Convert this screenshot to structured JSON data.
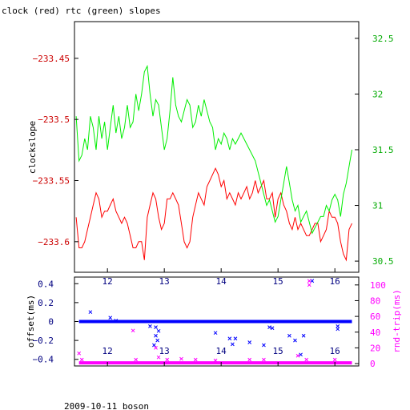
{
  "page": {
    "title": "clock (red) rtc (green) slopes",
    "footer": "2009-10-11 boson"
  },
  "colors": {
    "clock": "#ff0000",
    "rtc": "#00ee00",
    "offset": "#0000ff",
    "rtt": "#ff00ff",
    "axis": "#000000"
  },
  "chart_data": [
    {
      "type": "line",
      "title": "clock (red) rtc (green) slopes",
      "xlabel": "",
      "ylabel": "clockslope",
      "y2label": "",
      "xlim": [
        11.42,
        16.42
      ],
      "ylim": [
        -233.625,
        -233.42
      ],
      "y2lim": [
        30.4,
        32.65
      ],
      "xticks": [
        12,
        13,
        14,
        15,
        16
      ],
      "yticks": [
        -233.45,
        -233.5,
        -233.55,
        -233.6
      ],
      "y2ticks": [
        30.5,
        31,
        31.5,
        32,
        32.5
      ],
      "grid": false,
      "series": [
        {
          "name": "clock",
          "axis": "left",
          "x": [
            11.45,
            11.5,
            11.55,
            11.6,
            11.65,
            11.7,
            11.75,
            11.8,
            11.85,
            11.9,
            11.95,
            12.0,
            12.05,
            12.1,
            12.15,
            12.2,
            12.25,
            12.3,
            12.35,
            12.4,
            12.45,
            12.5,
            12.55,
            12.6,
            12.65,
            12.7,
            12.75,
            12.8,
            12.85,
            12.9,
            12.95,
            13.0,
            13.05,
            13.1,
            13.15,
            13.2,
            13.25,
            13.3,
            13.35,
            13.4,
            13.45,
            13.5,
            13.55,
            13.6,
            13.65,
            13.7,
            13.75,
            13.8,
            13.85,
            13.9,
            13.95,
            14.0,
            14.05,
            14.1,
            14.15,
            14.2,
            14.25,
            14.3,
            14.35,
            14.4,
            14.45,
            14.5,
            14.55,
            14.6,
            14.65,
            14.7,
            14.75,
            14.8,
            14.85,
            14.9,
            14.95,
            15.0,
            15.05,
            15.1,
            15.15,
            15.2,
            15.25,
            15.3,
            15.35,
            15.4,
            15.45,
            15.5,
            15.55,
            15.6,
            15.65,
            15.7,
            15.75,
            15.8,
            15.85,
            15.9,
            15.95,
            16.0,
            16.05,
            16.1,
            16.15,
            16.2,
            16.25,
            16.3
          ],
          "values": [
            -233.58,
            -233.605,
            -233.605,
            -233.6,
            -233.59,
            -233.58,
            -233.57,
            -233.56,
            -233.565,
            -233.58,
            -233.575,
            -233.575,
            -233.57,
            -233.565,
            -233.575,
            -233.58,
            -233.585,
            -233.58,
            -233.585,
            -233.595,
            -233.605,
            -233.605,
            -233.6,
            -233.6,
            -233.615,
            -233.58,
            -233.57,
            -233.56,
            -233.565,
            -233.58,
            -233.59,
            -233.585,
            -233.565,
            -233.565,
            -233.56,
            -233.565,
            -233.57,
            -233.585,
            -233.6,
            -233.605,
            -233.6,
            -233.58,
            -233.57,
            -233.56,
            -233.565,
            -233.57,
            -233.555,
            -233.55,
            -233.545,
            -233.54,
            -233.545,
            -233.555,
            -233.55,
            -233.565,
            -233.56,
            -233.565,
            -233.57,
            -233.56,
            -233.565,
            -233.56,
            -233.555,
            -233.565,
            -233.56,
            -233.55,
            -233.56,
            -233.555,
            -233.55,
            -233.565,
            -233.565,
            -233.56,
            -233.58,
            -233.565,
            -233.56,
            -233.57,
            -233.575,
            -233.585,
            -233.59,
            -233.58,
            -233.59,
            -233.585,
            -233.59,
            -233.595,
            -233.595,
            -233.59,
            -233.585,
            -233.585,
            -233.6,
            -233.595,
            -233.59,
            -233.575,
            -233.58,
            -233.58,
            -233.585,
            -233.6,
            -233.61,
            -233.615,
            -233.59,
            -233.585
          ]
        },
        {
          "name": "rtc",
          "axis": "right",
          "x": [
            11.45,
            11.5,
            11.55,
            11.6,
            11.65,
            11.7,
            11.75,
            11.8,
            11.85,
            11.9,
            11.95,
            12.0,
            12.05,
            12.1,
            12.15,
            12.2,
            12.25,
            12.3,
            12.35,
            12.4,
            12.45,
            12.5,
            12.55,
            12.6,
            12.65,
            12.7,
            12.75,
            12.8,
            12.85,
            12.9,
            12.95,
            13.0,
            13.05,
            13.1,
            13.15,
            13.2,
            13.25,
            13.3,
            13.35,
            13.4,
            13.45,
            13.5,
            13.55,
            13.6,
            13.65,
            13.7,
            13.75,
            13.8,
            13.85,
            13.9,
            13.95,
            14.0,
            14.05,
            14.1,
            14.15,
            14.2,
            14.25,
            14.3,
            14.35,
            14.4,
            14.45,
            14.5,
            14.55,
            14.6,
            14.65,
            14.7,
            14.75,
            14.8,
            14.85,
            14.9,
            14.95,
            15.0,
            15.05,
            15.1,
            15.15,
            15.2,
            15.25,
            15.3,
            15.35,
            15.4,
            15.45,
            15.5,
            15.55,
            15.6,
            15.65,
            15.7,
            15.75,
            15.8,
            15.85,
            15.9,
            15.95,
            16.0,
            16.05,
            16.1,
            16.15,
            16.2,
            16.25,
            16.3
          ],
          "values": [
            31.8,
            31.4,
            31.45,
            31.6,
            31.5,
            31.8,
            31.7,
            31.5,
            31.8,
            31.6,
            31.75,
            31.5,
            31.7,
            31.9,
            31.65,
            31.8,
            31.6,
            31.7,
            31.9,
            31.7,
            31.75,
            32.0,
            31.85,
            32.0,
            32.2,
            32.25,
            32.0,
            31.8,
            31.95,
            31.9,
            31.7,
            31.5,
            31.6,
            31.85,
            32.15,
            31.9,
            31.8,
            31.75,
            31.85,
            31.95,
            31.9,
            31.7,
            31.75,
            31.9,
            31.8,
            31.95,
            31.85,
            31.75,
            31.7,
            31.5,
            31.6,
            31.55,
            31.65,
            31.6,
            31.5,
            31.6,
            31.55,
            31.6,
            31.65,
            31.6,
            31.55,
            31.5,
            31.45,
            31.4,
            31.3,
            31.2,
            31.1,
            31.0,
            31.05,
            30.95,
            30.85,
            30.9,
            31.05,
            31.2,
            31.35,
            31.2,
            31.05,
            30.95,
            31.0,
            30.85,
            30.9,
            30.95,
            30.85,
            30.75,
            30.8,
            30.85,
            30.9,
            30.9,
            31.0,
            30.95,
            31.05,
            31.1,
            31.05,
            30.9,
            31.1,
            31.2,
            31.35,
            31.5
          ]
        }
      ]
    },
    {
      "type": "scatter",
      "title": "",
      "xlabel": "",
      "ylabel": "offset(ms)",
      "y2label": "rnd-trip(ms)",
      "xlim": [
        11.42,
        16.42
      ],
      "ylim": [
        -0.47,
        0.47
      ],
      "y2lim": [
        -3,
        110
      ],
      "xticks": [
        12,
        13,
        14,
        15,
        16
      ],
      "yticks": [
        0.4,
        0.2,
        0,
        -0.2,
        -0.4
      ],
      "y2ticks": [
        0,
        20,
        40,
        60,
        80,
        100
      ],
      "grid": false,
      "series": [
        {
          "name": "offset",
          "axis": "left",
          "x": [
            11.7,
            12.05,
            12.15,
            12.75,
            12.82,
            12.85,
            12.85,
            12.88,
            12.9,
            13.9,
            14.15,
            14.2,
            14.25,
            14.5,
            14.75,
            14.85,
            14.9,
            15.2,
            15.3,
            15.4,
            15.45,
            15.6,
            16.05,
            16.05
          ],
          "values": [
            0.1,
            0.04,
            0.01,
            -0.05,
            -0.25,
            -0.06,
            -0.15,
            -0.2,
            -0.1,
            -0.12,
            -0.18,
            -0.24,
            -0.18,
            -0.22,
            -0.25,
            -0.06,
            -0.07,
            -0.15,
            -0.2,
            -0.35,
            -0.15,
            0.43,
            -0.05,
            -0.08
          ]
        },
        {
          "name": "rnd-trip",
          "axis": "right",
          "x": [
            11.5,
            11.55,
            12.45,
            12.5,
            12.85,
            12.9,
            13.05,
            13.3,
            13.55,
            13.9,
            14.5,
            14.75,
            15.35,
            15.5,
            15.55,
            15.55,
            16.0
          ],
          "values": [
            13,
            5,
            42,
            5,
            20,
            8,
            5,
            6,
            5,
            4,
            5,
            5,
            10,
            5,
            100,
            105,
            5
          ]
        }
      ]
    }
  ]
}
